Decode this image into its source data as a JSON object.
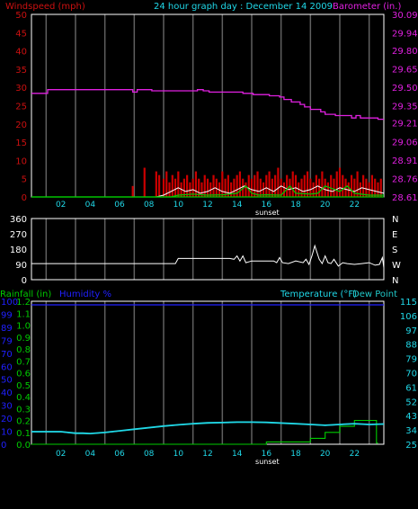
{
  "header": {
    "left_title": "Windspeed (mph)",
    "center_title": "24 hour graph day : December 14 2009",
    "right_title": "Barometer (in.)"
  },
  "colors": {
    "background": "#000000",
    "panel_border": "#ffffff",
    "grid": "#606060",
    "wind_axis": "#cc1010",
    "wind_gust": "#cc0000",
    "wind_avg": "#ffffff",
    "wind_green": "#00cc00",
    "barometer": "#e020e0",
    "direction": "#ffffff",
    "rain": "#00cc00",
    "humidity": "#2020ff",
    "temperature": "#20d8e8",
    "dew_point": "#20c8c8",
    "header_center": "#20d8e8",
    "label_white": "#ffffff"
  },
  "chart_data": [
    {
      "id": "wind_baro",
      "type": "line",
      "title": "24 hour graph day : December 14 2009",
      "ylabel_left": "Windspeed (mph)",
      "ylabel_right": "Barometer (in.)",
      "x_tick_labels": [
        "02",
        "04",
        "06",
        "08",
        "10",
        "12",
        "14",
        "16",
        "18",
        "20",
        "22"
      ],
      "x_annotation": "sunset",
      "sunset_hour": 16,
      "xlim": [
        0,
        24
      ],
      "y_left_ticks": [
        0,
        5,
        10,
        15,
        20,
        25,
        30,
        35,
        40,
        45,
        50
      ],
      "y_right_ticks": [
        28.61,
        28.76,
        28.91,
        29.06,
        29.21,
        29.35,
        29.5,
        29.65,
        29.8,
        29.94,
        30.09
      ],
      "ylim_left": [
        0,
        50
      ],
      "ylim_right": [
        28.61,
        30.09
      ],
      "grid": true,
      "series": [
        {
          "name": "Barometer (in.)",
          "axis": "right",
          "x": [
            0,
            1.1,
            1.1,
            6.9,
            6.9,
            7.2,
            7.2,
            8.2,
            8.2,
            11.3,
            11.3,
            11.7,
            11.7,
            12.1,
            12.1,
            14.4,
            14.4,
            15.1,
            15.1,
            16.2,
            16.2,
            16.9,
            16.9,
            17.2,
            17.2,
            17.7,
            17.7,
            18.3,
            18.3,
            18.6,
            18.6,
            19.0,
            19.0,
            19.7,
            19.7,
            20.0,
            20.0,
            20.7,
            20.7,
            21.8,
            21.8,
            22.1,
            22.1,
            22.4,
            22.4,
            23.6,
            23.6,
            24
          ],
          "y": [
            29.45,
            29.45,
            29.48,
            29.48,
            29.46,
            29.46,
            29.48,
            29.48,
            29.47,
            29.47,
            29.48,
            29.48,
            29.47,
            29.47,
            29.46,
            29.46,
            29.45,
            29.45,
            29.44,
            29.44,
            29.43,
            29.43,
            29.42,
            29.42,
            29.4,
            29.4,
            29.38,
            29.38,
            29.36,
            29.36,
            29.34,
            29.34,
            29.32,
            29.32,
            29.3,
            29.3,
            29.28,
            29.28,
            29.27,
            29.27,
            29.25,
            29.25,
            29.27,
            29.27,
            29.25,
            29.25,
            29.24,
            29.24
          ]
        },
        {
          "name": "Wind gust",
          "axis": "left",
          "type": "bar",
          "x": [
            6.9,
            7.7,
            8.5,
            8.7,
            9.0,
            9.2,
            9.4,
            9.6,
            9.8,
            10.0,
            10.2,
            10.4,
            10.6,
            10.8,
            11.0,
            11.2,
            11.4,
            11.6,
            11.8,
            12.0,
            12.2,
            12.4,
            12.6,
            12.8,
            13.0,
            13.2,
            13.4,
            13.6,
            13.8,
            14.0,
            14.2,
            14.4,
            14.6,
            14.8,
            15.0,
            15.2,
            15.4,
            15.6,
            15.8,
            16.0,
            16.2,
            16.4,
            16.6,
            16.8,
            17.0,
            17.2,
            17.4,
            17.6,
            17.8,
            18.0,
            18.2,
            18.4,
            18.6,
            18.8,
            19.0,
            19.2,
            19.4,
            19.6,
            19.8,
            20.0,
            20.2,
            20.4,
            20.6,
            20.8,
            21.0,
            21.2,
            21.4,
            21.6,
            21.8,
            22.0,
            22.2,
            22.4,
            22.6,
            22.8,
            23.0,
            23.2,
            23.4,
            23.6,
            23.8
          ],
          "y": [
            3,
            8,
            7,
            6,
            5,
            7,
            4,
            6,
            5,
            7,
            4,
            5,
            6,
            4,
            5,
            7,
            5,
            4,
            6,
            5,
            4,
            6,
            5,
            4,
            7,
            5,
            6,
            4,
            5,
            6,
            7,
            5,
            4,
            6,
            5,
            6,
            7,
            5,
            4,
            6,
            7,
            5,
            6,
            8,
            5,
            4,
            6,
            5,
            7,
            6,
            4,
            5,
            6,
            7,
            5,
            4,
            6,
            5,
            7,
            5,
            4,
            6,
            5,
            7,
            8,
            6,
            5,
            4,
            6,
            5,
            7,
            4,
            6,
            5,
            4,
            6,
            5,
            4,
            5
          ]
        },
        {
          "name": "Wind speed",
          "axis": "left",
          "x": [
            0,
            8.5,
            9.0,
            9.5,
            10.0,
            10.5,
            11.0,
            11.5,
            12.0,
            12.5,
            13.0,
            13.5,
            14.0,
            14.5,
            15.0,
            15.5,
            16.0,
            16.5,
            17.0,
            17.5,
            18.0,
            18.5,
            19.0,
            19.5,
            20.0,
            20.5,
            21.0,
            21.5,
            22.0,
            22.5,
            23.0,
            23.5,
            24
          ],
          "y": [
            0,
            0,
            0.5,
            1.5,
            2.5,
            1.5,
            2,
            1,
            1.5,
            2.5,
            1.5,
            1,
            2,
            3,
            2,
            1.5,
            2.5,
            1.5,
            3,
            2,
            2.5,
            1.5,
            2,
            3,
            2,
            1.5,
            2.5,
            2,
            1.5,
            2.5,
            2,
            1.5,
            1
          ]
        },
        {
          "name": "Wind avg",
          "axis": "left",
          "x": [
            0,
            9.5,
            10,
            11,
            12,
            13,
            14,
            14.6,
            15,
            15.5,
            16,
            17,
            17.6,
            18,
            19,
            19.5,
            20,
            21,
            21.5,
            22,
            23,
            24
          ],
          "y": [
            0,
            0,
            0.5,
            0.8,
            0.5,
            0.6,
            1,
            3,
            1,
            0.5,
            0.6,
            0.5,
            3,
            1,
            0.8,
            1,
            3,
            1.5,
            3,
            1,
            0.5,
            0.5
          ]
        }
      ]
    },
    {
      "id": "direction",
      "type": "line",
      "xlim": [
        0,
        24
      ],
      "y_left_ticks": [
        0,
        90,
        180,
        270,
        360
      ],
      "y_right_labels": [
        "N",
        "W",
        "S",
        "E",
        "N"
      ],
      "ylim": [
        0,
        360
      ],
      "grid": true,
      "series": [
        {
          "name": "Wind direction",
          "x": [
            0,
            9.8,
            10,
            13.5,
            13.8,
            14.0,
            14.2,
            14.4,
            14.6,
            15,
            16.5,
            16.7,
            16.9,
            17.1,
            17.5,
            18.0,
            18.5,
            18.7,
            18.9,
            19.1,
            19.3,
            19.6,
            19.8,
            20.0,
            20.2,
            20.4,
            20.6,
            20.9,
            21.2,
            21.5,
            22.0,
            22.5,
            23.0,
            23.4,
            23.7,
            23.9,
            24
          ],
          "y": [
            95,
            95,
            125,
            125,
            120,
            140,
            110,
            140,
            100,
            110,
            110,
            100,
            130,
            100,
            95,
            110,
            100,
            120,
            90,
            140,
            200,
            120,
            95,
            140,
            100,
            95,
            120,
            80,
            100,
            95,
            90,
            95,
            100,
            85,
            90,
            130,
            70
          ]
        }
      ]
    },
    {
      "id": "temp_rain_hum",
      "type": "line",
      "x_tick_labels": [
        "02",
        "04",
        "06",
        "08",
        "10",
        "12",
        "14",
        "16",
        "18",
        "20",
        "22"
      ],
      "x_annotation": "sunset",
      "sunset_hour": 16,
      "xlim": [
        0,
        24
      ],
      "legend": [
        "Rainfall (in)",
        "Humidity %",
        "Temperature (°F)",
        "Dew Point"
      ],
      "y_rain_ticks": [
        0.0,
        0.1,
        0.2,
        0.3,
        0.4,
        0.5,
        0.6,
        0.7,
        0.8,
        0.9,
        1.0,
        1.1,
        1.2
      ],
      "y_hum_ticks": [
        0,
        10,
        20,
        30,
        40,
        50,
        60,
        70,
        79,
        89,
        99,
        100
      ],
      "y_temp_ticks": [
        25,
        34,
        43,
        52,
        61,
        70,
        79,
        88,
        97,
        106,
        115
      ],
      "ylim_rain": [
        0,
        1.2
      ],
      "ylim_temp": [
        25,
        115
      ],
      "grid": true,
      "series": [
        {
          "name": "Humidity %",
          "axis": "hum",
          "x": [
            0,
            24
          ],
          "y": [
            97.5,
            97.5
          ]
        },
        {
          "name": "Rainfall (in)",
          "axis": "rain",
          "x": [
            0,
            16,
            16,
            19,
            19,
            20,
            20,
            21,
            21,
            22,
            22,
            23.5,
            23.5,
            23.6
          ],
          "y": [
            0,
            0,
            0.02,
            0.02,
            0.05,
            0.05,
            0.1,
            0.1,
            0.15,
            0.15,
            0.2,
            0.2,
            0.01,
            0.01
          ]
        },
        {
          "name": "Temperature (°F)",
          "axis": "temp",
          "x": [
            0,
            1,
            2,
            2.5,
            3,
            3.5,
            4,
            5,
            6,
            7,
            8,
            9,
            10,
            11,
            12,
            13,
            14,
            15,
            16,
            17,
            18,
            19,
            20,
            21,
            22,
            23,
            24
          ],
          "y": [
            33,
            33,
            33,
            32.5,
            32,
            32,
            31.8,
            32.5,
            33.5,
            34.5,
            35.5,
            36.5,
            37.3,
            38,
            38.5,
            38.7,
            39,
            39,
            38.8,
            38.4,
            38,
            37.5,
            37,
            37.5,
            38,
            37.5,
            37.8
          ]
        },
        {
          "name": "Dew Point",
          "axis": "temp",
          "x": [
            0,
            1,
            2,
            2.5,
            3,
            3.5,
            4,
            5,
            6,
            7,
            8,
            9,
            10,
            11,
            12,
            13,
            14,
            15,
            16,
            17,
            18,
            19,
            20,
            21,
            22,
            23,
            24
          ],
          "y": [
            32.7,
            32.7,
            32.7,
            32.2,
            31.7,
            31.7,
            31.5,
            32.2,
            33.2,
            34.2,
            35.2,
            36.2,
            37,
            37.7,
            38.2,
            38.4,
            38.7,
            38.7,
            38.5,
            38.1,
            37.7,
            37.2,
            36.7,
            37.2,
            37.7,
            37.2,
            37.5
          ]
        }
      ]
    }
  ]
}
